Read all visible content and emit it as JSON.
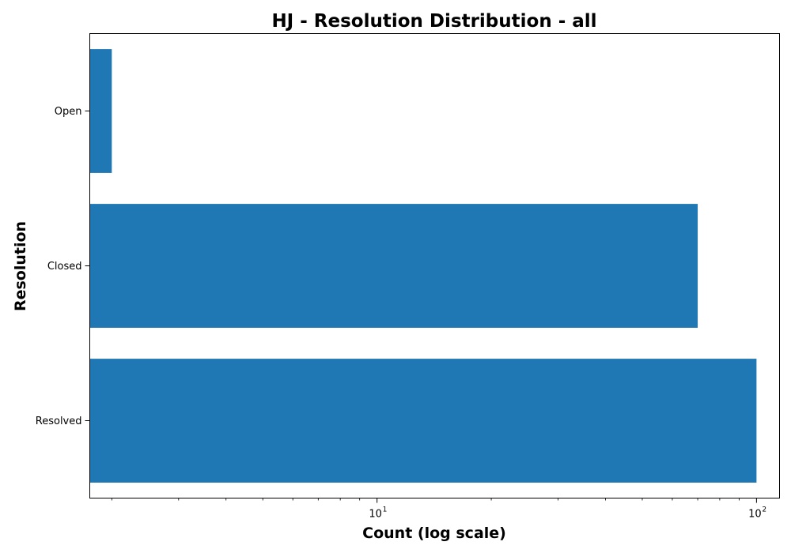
{
  "chart_data": {
    "type": "bar",
    "orientation": "horizontal",
    "title": "HJ - Resolution Distribution - all",
    "xlabel": "Count (log scale)",
    "ylabel": "Resolution",
    "x_scale": "log",
    "xlim": [
      1.75,
      115
    ],
    "categories": [
      "Open",
      "Closed",
      "Resolved"
    ],
    "values": [
      2,
      70,
      100
    ],
    "x_ticks": [
      {
        "base": "10",
        "exp": "1",
        "value": 10
      },
      {
        "base": "10",
        "exp": "2",
        "value": 100
      }
    ],
    "bar_color": "#1f77b4",
    "grid": false,
    "legend": "none"
  }
}
